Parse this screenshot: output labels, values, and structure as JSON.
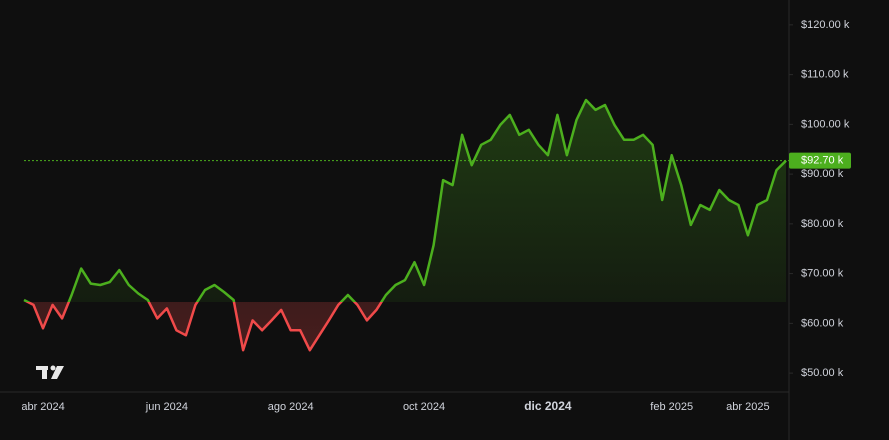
{
  "chart_data": {
    "type": "baseline",
    "categories": [
      null,
      null,
      "abr 2024",
      null,
      null,
      null,
      null,
      null,
      null,
      null,
      null,
      null,
      null,
      null,
      null,
      "jun 2024",
      null,
      null,
      null,
      null,
      null,
      null,
      null,
      null,
      null,
      null,
      null,
      null,
      "ago 2024",
      null,
      null,
      null,
      null,
      null,
      null,
      null,
      null,
      null,
      null,
      null,
      null,
      null,
      "oct 2024",
      null,
      null,
      null,
      null,
      null,
      null,
      null,
      null,
      null,
      null,
      null,
      null,
      "dic 2024",
      null,
      null,
      null,
      null,
      null,
      null,
      null,
      null,
      null,
      null,
      null,
      null,
      "feb 2025",
      null,
      null,
      null,
      null,
      null,
      null,
      null,
      "abr 2025",
      null,
      null,
      null,
      null
    ],
    "values": [
      64.7,
      63.7,
      59,
      63.7,
      61,
      65.7,
      71,
      68,
      67.7,
      68.3,
      70.7,
      67.7,
      66,
      64.7,
      61,
      63,
      58.6,
      57.6,
      63.7,
      66.7,
      67.7,
      66.3,
      64.7,
      54.6,
      60.6,
      58.6,
      60.6,
      62.7,
      58.6,
      58.6,
      54.6,
      57.6,
      60.6,
      63.7,
      65.7,
      63.7,
      60.6,
      62.7,
      65.7,
      67.7,
      68.7,
      72.3,
      67.7,
      75.7,
      88.8,
      87.8,
      97.9,
      91.8,
      95.9,
      96.9,
      99.9,
      101.9,
      97.9,
      98.9,
      95.9,
      93.8,
      101.9,
      93.8,
      100.9,
      104.9,
      102.9,
      103.9,
      99.9,
      96.9,
      96.9,
      97.9,
      95.9,
      84.8,
      93.8,
      87.8,
      79.8,
      83.8,
      82.8,
      86.8,
      84.8,
      83.8,
      77.7,
      83.8,
      84.8,
      90.8,
      92.7
    ],
    "baseline": 64.3,
    "up_color": "#4caf1e",
    "down_color": "#f04a4a",
    "last_price": {
      "value": 92.7,
      "label": "$92.70 k"
    },
    "ylim": [
      46.2,
      125
    ],
    "yticks": [
      {
        "value": 50,
        "label": "$50.00 k"
      },
      {
        "value": 60,
        "label": "$60.00 k"
      },
      {
        "value": 70,
        "label": "$70.00 k"
      },
      {
        "value": 80,
        "label": "$80.00 k"
      },
      {
        "value": 90,
        "label": "$90.00 k"
      },
      {
        "value": 100,
        "label": "$100.00 k"
      },
      {
        "value": 110,
        "label": "$110.00 k"
      },
      {
        "value": 120,
        "label": "$120.00 k"
      }
    ]
  }
}
